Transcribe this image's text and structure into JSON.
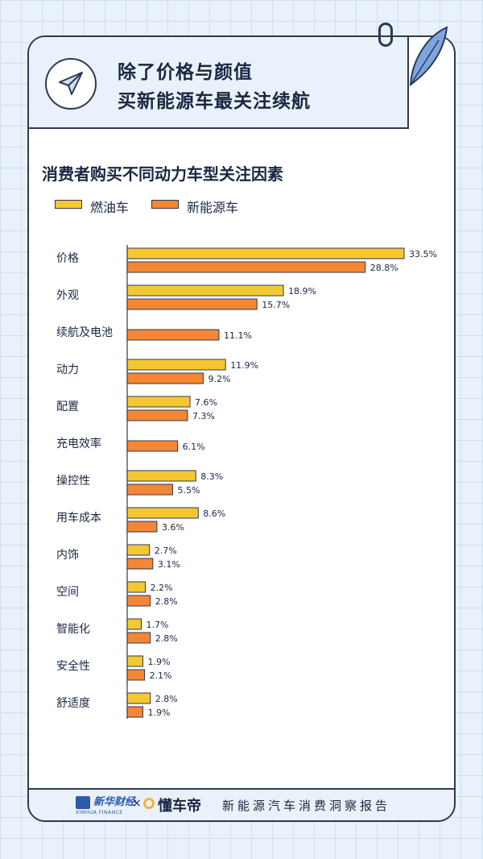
{
  "header": {
    "title_line1": "除了价格与颜值",
    "title_line2": "买新能源车最关注续航"
  },
  "footer": {
    "brand1": "新华财经",
    "brand1_sub": "XINHUA FINANCE",
    "times": "×",
    "brand2": "懂车帝",
    "report_title": "新能源汽车消费洞察报告"
  },
  "chart_data": {
    "type": "bar",
    "orientation": "horizontal",
    "title": "消费者购买不同动力车型关注因素",
    "categories": [
      "价格",
      "外观",
      "续航及电池",
      "动力",
      "配置",
      "充电效率",
      "操控性",
      "用车成本",
      "内饰",
      "空间",
      "智能化",
      "安全性",
      "舒适度"
    ],
    "series": [
      {
        "name": "燃油车",
        "color": "#f5c832",
        "values": [
          33.5,
          18.9,
          null,
          11.9,
          7.6,
          null,
          8.3,
          8.6,
          2.7,
          2.2,
          1.7,
          1.9,
          2.8
        ]
      },
      {
        "name": "新能源车",
        "color": "#f58634",
        "values": [
          28.8,
          15.7,
          11.1,
          9.2,
          7.3,
          6.1,
          5.5,
          3.6,
          3.1,
          2.8,
          2.8,
          2.1,
          1.9
        ]
      }
    ],
    "value_suffix": "%",
    "xlim": [
      0,
      33.5
    ],
    "legend_position": "top-left",
    "grid": false
  }
}
